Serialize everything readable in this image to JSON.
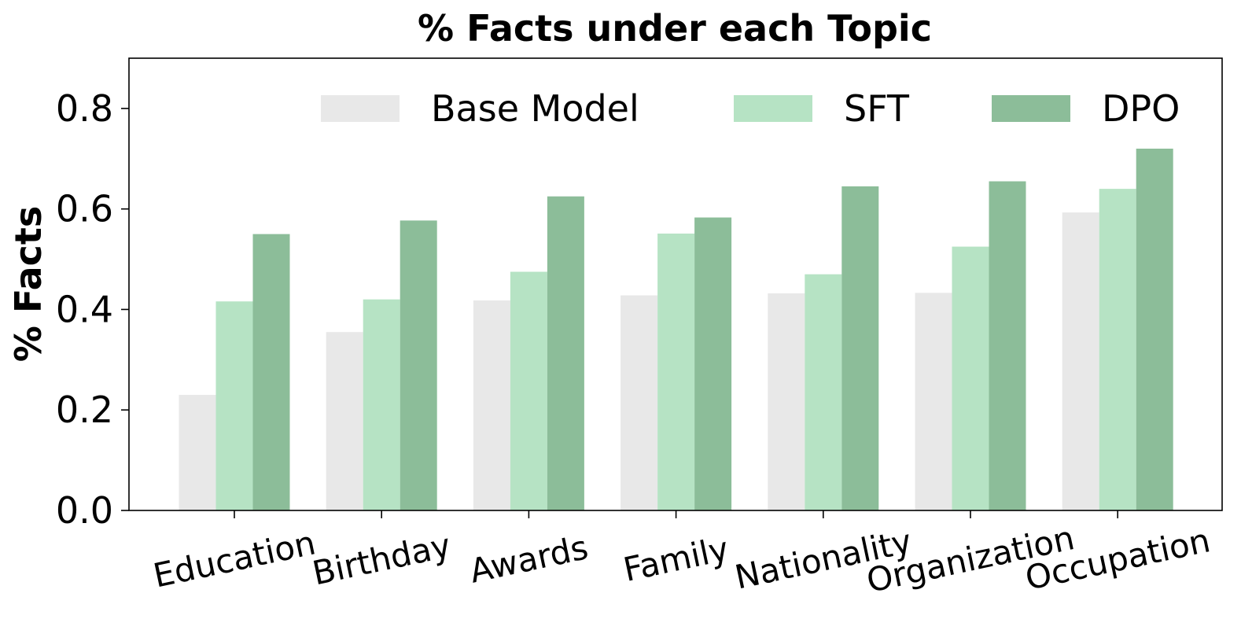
{
  "chart_data": {
    "type": "bar",
    "title": "% Facts under each Topic",
    "xlabel": "",
    "ylabel": "% Facts",
    "ylim": [
      0,
      0.9
    ],
    "yticks": [
      0.0,
      0.2,
      0.4,
      0.6,
      0.8
    ],
    "ytick_labels": [
      "0.0",
      "0.2",
      "0.4",
      "0.6",
      "0.8"
    ],
    "categories": [
      "Education",
      "Birthday",
      "Awards",
      "Family",
      "Nationality",
      "Organization",
      "Occupation"
    ],
    "series": [
      {
        "name": "Base Model",
        "color": "#e8e8e8",
        "values": [
          0.23,
          0.355,
          0.418,
          0.428,
          0.432,
          0.433,
          0.593
        ]
      },
      {
        "name": "SFT",
        "color": "#b6e3c4",
        "values": [
          0.416,
          0.42,
          0.475,
          0.551,
          0.47,
          0.525,
          0.64
        ]
      },
      {
        "name": "DPO",
        "color": "#8cbd99",
        "values": [
          0.55,
          0.577,
          0.625,
          0.583,
          0.645,
          0.655,
          0.72
        ]
      }
    ],
    "legend_position": "top-right",
    "grid": false
  }
}
